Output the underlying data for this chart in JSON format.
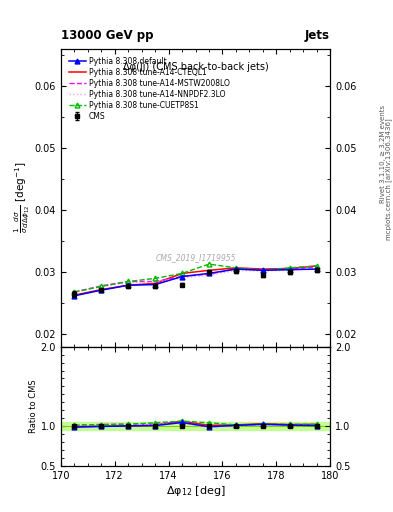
{
  "title_top": "13000 GeV pp",
  "title_right": "Jets",
  "plot_title": "Δφ(jj) (CMS back-to-back jets)",
  "xlabel": "Δφ$_{12}$ [deg]",
  "ylabel_main": "$\\frac{1}{\\sigma}\\frac{d\\sigma}{d\\Delta\\phi_{12}}$ [deg$^{-1}$]",
  "ylabel_ratio": "Ratio to CMS",
  "right_label_top": "Rivet 3.1.10, ≥ 3.2M events",
  "right_label_bot": "mcplots.cern.ch [arXiv:1306.3436]",
  "watermark": "CMS_2019_I1719955",
  "xlim": [
    170,
    180
  ],
  "ylim_main": [
    0.018,
    0.066
  ],
  "ylim_ratio": [
    0.5,
    2.0
  ],
  "x_data": [
    170.5,
    171.5,
    172.5,
    173.5,
    174.5,
    175.5,
    176.5,
    177.5,
    178.5,
    179.5
  ],
  "cms_y": [
    0.0265,
    0.0272,
    0.0278,
    0.0278,
    0.028,
    0.03,
    0.0302,
    0.0296,
    0.03,
    0.0303
  ],
  "cms_yerr": [
    0.0005,
    0.0003,
    0.0003,
    0.0003,
    0.0003,
    0.0003,
    0.0003,
    0.0003,
    0.0003,
    0.0003
  ],
  "py_default_y": [
    0.0262,
    0.0271,
    0.0279,
    0.028,
    0.0293,
    0.0298,
    0.0305,
    0.0303,
    0.0304,
    0.0305
  ],
  "py_cteql1_y": [
    0.0263,
    0.0272,
    0.0279,
    0.0282,
    0.0298,
    0.0303,
    0.0307,
    0.0305,
    0.0306,
    0.031
  ],
  "py_mstw_y": [
    0.0268,
    0.0278,
    0.0285,
    0.0285,
    0.0293,
    0.0297,
    0.0305,
    0.0304,
    0.0305,
    0.0308
  ],
  "py_nnpdf_y": [
    0.0268,
    0.0277,
    0.0283,
    0.0284,
    0.0291,
    0.0295,
    0.0303,
    0.0302,
    0.0303,
    0.0307
  ],
  "py_cuetp_y": [
    0.0268,
    0.0277,
    0.0285,
    0.029,
    0.0298,
    0.0313,
    0.0307,
    0.0303,
    0.0307,
    0.031
  ],
  "cms_color": "#000000",
  "col_default": "#0000ff",
  "col_cteql1": "#ff0000",
  "col_mstw": "#ff00ff",
  "col_nnpdf": "#ff99ff",
  "col_cuetp": "#00bb00",
  "band_color": "#bbff88",
  "band_edge": "#88cc00",
  "legend_entries": [
    "CMS",
    "Pythia 8.308 default",
    "Pythia 8.308 tune-A14-CTEQL1",
    "Pythia 8.308 tune-A14-MSTW2008LO",
    "Pythia 8.308 tune-A14-NNPDF2.3LO",
    "Pythia 8.308 tune-CUETP8S1"
  ]
}
